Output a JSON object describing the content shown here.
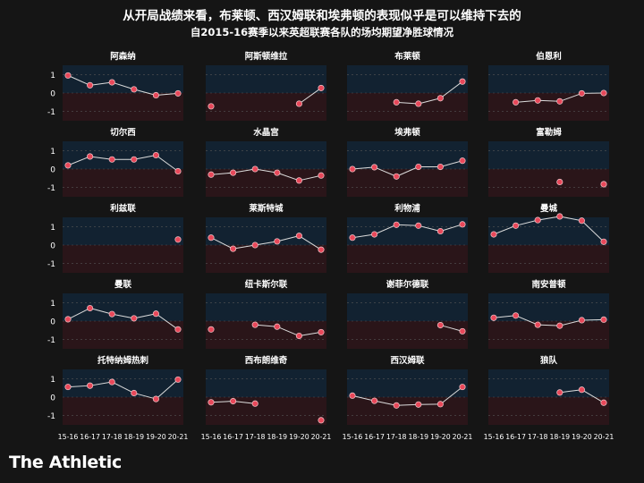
{
  "title": "从开局战绩来看，布莱顿、西汉姆联和埃弗顿的表现似乎是可以维持下去的",
  "subtitle": "自2015-16赛季以来英超联赛各队的场均期望净胜球情况",
  "brand": "The Athletic",
  "colors": {
    "background": "#151515",
    "positive_band": "#122231",
    "negative_band": "#2a1519",
    "line": "#dcdcdc",
    "marker": "#e8485a",
    "grid": "#555555"
  },
  "chart_data": {
    "type": "line",
    "layout": "small-multiples-5x4",
    "x": [
      "15-16",
      "16-17",
      "17-18",
      "18-19",
      "19-20",
      "20-21"
    ],
    "ylim": [
      -1.5,
      1.5
    ],
    "yticks": [
      1,
      0,
      -1
    ],
    "grid": true,
    "panels": [
      {
        "name": "阿森纳",
        "values": [
          0.95,
          0.42,
          0.58,
          0.2,
          -0.12,
          -0.02
        ]
      },
      {
        "name": "阿斯顿维拉",
        "values": [
          -0.72,
          null,
          null,
          null,
          -0.58,
          0.27
        ]
      },
      {
        "name": "布莱顿",
        "values": [
          null,
          null,
          -0.5,
          -0.58,
          -0.28,
          0.62
        ]
      },
      {
        "name": "伯恩利",
        "values": [
          null,
          -0.5,
          -0.4,
          -0.45,
          -0.02,
          0.0
        ]
      },
      {
        "name": "切尔西",
        "values": [
          0.2,
          0.68,
          0.52,
          0.52,
          0.75,
          -0.12
        ]
      },
      {
        "name": "水晶宫",
        "values": [
          -0.3,
          -0.2,
          0.0,
          -0.2,
          -0.62,
          -0.35
        ]
      },
      {
        "name": "埃弗顿",
        "values": [
          0.0,
          0.1,
          -0.4,
          0.12,
          0.12,
          0.45
        ]
      },
      {
        "name": "富勒姆",
        "values": [
          null,
          null,
          null,
          -0.7,
          null,
          -0.82
        ]
      },
      {
        "name": "利兹联",
        "values": [
          null,
          null,
          null,
          null,
          null,
          0.3
        ]
      },
      {
        "name": "莱斯特城",
        "values": [
          0.4,
          -0.2,
          0.0,
          0.2,
          0.5,
          -0.25
        ]
      },
      {
        "name": "利物浦",
        "values": [
          0.4,
          0.58,
          1.1,
          1.05,
          0.75,
          1.12
        ]
      },
      {
        "name": "曼城",
        "values": [
          0.58,
          1.05,
          1.35,
          1.55,
          1.32,
          0.18
        ]
      },
      {
        "name": "曼联",
        "values": [
          0.1,
          0.7,
          0.38,
          0.15,
          0.4,
          -0.45
        ]
      },
      {
        "name": "纽卡斯尔联",
        "values": [
          -0.45,
          null,
          -0.2,
          -0.3,
          -0.8,
          -0.6
        ]
      },
      {
        "name": "谢菲尔德联",
        "values": [
          null,
          null,
          null,
          null,
          -0.22,
          -0.55
        ]
      },
      {
        "name": "南安普顿",
        "values": [
          0.18,
          0.3,
          -0.2,
          -0.25,
          0.05,
          0.08
        ]
      },
      {
        "name": "托特纳姆热刺",
        "values": [
          0.55,
          0.62,
          0.82,
          0.22,
          -0.1,
          0.95
        ]
      },
      {
        "name": "西布朗维奇",
        "values": [
          -0.28,
          -0.22,
          -0.35,
          null,
          null,
          -1.25
        ]
      },
      {
        "name": "西汉姆联",
        "values": [
          0.08,
          -0.2,
          -0.45,
          -0.4,
          -0.38,
          0.55
        ]
      },
      {
        "name": "狼队",
        "values": [
          null,
          null,
          null,
          0.25,
          0.4,
          -0.3
        ]
      }
    ]
  }
}
